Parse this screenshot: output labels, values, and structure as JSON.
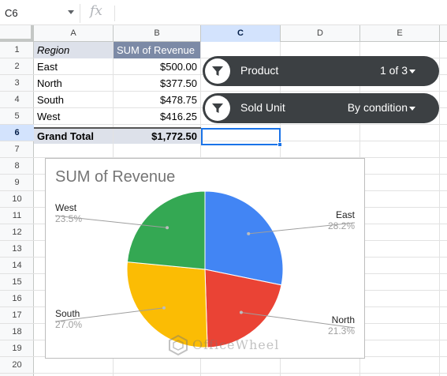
{
  "formula_bar": {
    "name_box": "C6",
    "fx_label": "fx",
    "formula": ""
  },
  "columns": [
    "A",
    "B",
    "C",
    "D",
    "E"
  ],
  "selected_column": "C",
  "rows": [
    "1",
    "2",
    "3",
    "4",
    "5",
    "6",
    "7",
    "8",
    "9",
    "10",
    "11",
    "12",
    "13",
    "14",
    "15",
    "16",
    "17",
    "18",
    "19",
    "20"
  ],
  "selected_row": "6",
  "pivot": {
    "header": {
      "region": "Region",
      "sum": "SUM of Revenue"
    },
    "rows": [
      {
        "region": "East",
        "revenue": "$500.00"
      },
      {
        "region": "North",
        "revenue": "$377.50"
      },
      {
        "region": "South",
        "revenue": "$478.75"
      },
      {
        "region": "West",
        "revenue": "$416.25"
      }
    ],
    "total": {
      "label": "Grand Total",
      "value": "$1,772.50"
    }
  },
  "filters": [
    {
      "label": "Product",
      "value": "1 of 3"
    },
    {
      "label": "Sold Unit",
      "value": "By condition"
    }
  ],
  "colors": {
    "east": "#4285f4",
    "north": "#ea4335",
    "south": "#fbbc04",
    "west": "#34a853",
    "selection": "#1a73e8"
  },
  "chart_data": {
    "type": "pie",
    "title": "SUM of Revenue",
    "slices": [
      {
        "name": "East",
        "value": 500.0,
        "pct": "28.2%",
        "color": "#4285f4"
      },
      {
        "name": "North",
        "value": 377.5,
        "pct": "21.3%",
        "color": "#ea4335"
      },
      {
        "name": "South",
        "value": 478.75,
        "pct": "27.0%",
        "color": "#fbbc04"
      },
      {
        "name": "West",
        "value": 416.25,
        "pct": "23.5%",
        "color": "#34a853"
      }
    ],
    "legend": "labels-outside"
  },
  "watermark": {
    "text": "OfficeWheel"
  }
}
